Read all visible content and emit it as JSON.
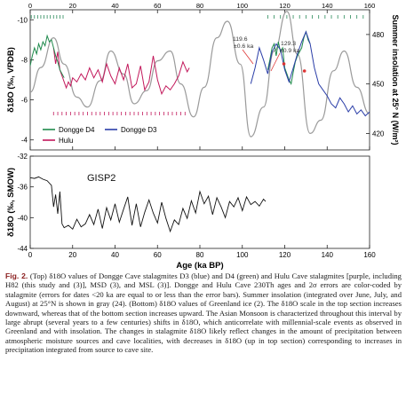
{
  "figure": {
    "x_axis": {
      "label": "Age (ka BP)",
      "ticks": [
        "0",
        "20",
        "40",
        "60",
        "80",
        "100",
        "120",
        "140",
        "160"
      ],
      "range": [
        0,
        160
      ]
    },
    "top_panel": {
      "y_label_left": "δ18O (‰, VPDB)",
      "y_ticks_left": [
        "-10",
        "-8",
        "-6",
        "-4"
      ],
      "y_range_left": [
        -10.5,
        -3.5
      ],
      "y_label_right": "Summer insolation at 25° N (W/m²)",
      "y_ticks_right": [
        "480",
        "450",
        "420"
      ],
      "y_range_right": [
        410,
        495
      ],
      "legend": [
        "Dongge D4",
        "Dongge D3",
        "Hulu"
      ],
      "annotations": [
        {
          "age": 119.6,
          "err": "±0.6 ka",
          "text": "119.6"
        },
        {
          "age": 129.3,
          "err": "±0.9 ka",
          "text": "129.3"
        }
      ]
    },
    "bottom_panel": {
      "y_label": "δ18O (‰, SMOW)",
      "y_ticks": [
        "-32",
        "-36",
        "-40",
        "-44"
      ],
      "y_range": [
        -44,
        -32
      ],
      "series_label": "GISP2"
    },
    "colors": {
      "dongge_d3": "#2b3ea8",
      "dongge_d4": "#1f8a4c",
      "hulu": "#c2185b",
      "insolation": "#9a9a9a",
      "gisp2": "#111111",
      "ticks": "#2a8a5a",
      "hulu_ticks": "#c2185b"
    }
  },
  "chart_data": [
    {
      "type": "line",
      "title": "",
      "xlabel": "Age (ka BP)",
      "ylabel": "δ18O (‰, VPDB)",
      "xlim": [
        0,
        160
      ],
      "ylim": [
        -10.5,
        -3.5
      ],
      "series": [
        {
          "name": "Hulu",
          "x": [
            11,
            12,
            13,
            14,
            15,
            16,
            17,
            18,
            19,
            20,
            22,
            24,
            26,
            28,
            30,
            32,
            34,
            36,
            38,
            40,
            42,
            44,
            46,
            48,
            50,
            52,
            54,
            56,
            58,
            60,
            62,
            64,
            66,
            68,
            70,
            72,
            74,
            75
          ],
          "y": [
            -8.6,
            -7.8,
            -8.4,
            -7.5,
            -7.2,
            -6.9,
            -6.6,
            -6.9,
            -6.7,
            -7.1,
            -6.9,
            -7.3,
            -7.0,
            -7.6,
            -7.1,
            -7.5,
            -6.9,
            -7.8,
            -7.2,
            -6.8,
            -7.6,
            -7.0,
            -7.8,
            -6.6,
            -6.8,
            -7.7,
            -6.5,
            -6.9,
            -8.2,
            -7.0,
            -6.3,
            -6.7,
            -6.5,
            -6.8,
            -7.2,
            -7.9,
            -7.4,
            -7.6
          ]
        },
        {
          "name": "Dongge D4",
          "x": [
            0,
            1,
            2,
            3,
            4,
            5,
            6,
            7,
            8,
            9,
            10,
            11,
            12,
            13,
            14,
            15,
            16,
            112,
            113,
            114,
            115,
            116,
            117,
            118,
            119,
            120,
            121,
            122,
            123,
            124,
            125,
            126,
            127,
            128,
            129,
            130,
            131,
            132
          ],
          "y": [
            -7.7,
            -8.2,
            -8.6,
            -8.3,
            -8.8,
            -8.5,
            -8.9,
            -8.7,
            -9.2,
            -8.9,
            -9.0,
            -8.6,
            -8.2,
            -7.9,
            -7.5,
            -7.3,
            -7.1,
            -7.5,
            -8.0,
            -8.6,
            -8.8,
            -8.2,
            -8.9,
            -8.4,
            -8.6,
            -7.6,
            -7.3,
            -7.0,
            -6.8,
            -7.4,
            -7.9,
            -8.2,
            -8.4,
            -8.6,
            -9.1,
            -9.4,
            -9.0,
            -8.8
          ]
        },
        {
          "name": "Dongge D3",
          "x": [
            104,
            106,
            108,
            110,
            112,
            114,
            116,
            118,
            120,
            122,
            124,
            126,
            128,
            130,
            132,
            134,
            136,
            138,
            140,
            142,
            144,
            146,
            148,
            150,
            152,
            154,
            156,
            158,
            160
          ],
          "y": [
            -6.8,
            -7.6,
            -8.6,
            -8.0,
            -7.3,
            -8.4,
            -8.8,
            -8.5,
            -7.5,
            -6.9,
            -7.6,
            -8.3,
            -8.9,
            -9.4,
            -8.8,
            -7.6,
            -6.8,
            -6.5,
            -6.2,
            -5.8,
            -5.6,
            -6.1,
            -5.8,
            -5.4,
            -5.7,
            -5.3,
            -5.5,
            -5.2,
            -5.4
          ]
        },
        {
          "name": "Summer insolation",
          "x": [
            0,
            5,
            11,
            16,
            22,
            27,
            33,
            38,
            44,
            49,
            55,
            60,
            66,
            71,
            77,
            82,
            88,
            93,
            99,
            104,
            110,
            115,
            121,
            126,
            132,
            137,
            143,
            148,
            154,
            160
          ],
          "y": [
            445,
            460,
            478,
            462,
            442,
            436,
            452,
            470,
            456,
            438,
            446,
            464,
            470,
            450,
            430,
            448,
            478,
            488,
            462,
            418,
            436,
            470,
            494,
            468,
            420,
            428,
            458,
            470,
            448,
            432
          ]
        }
      ]
    },
    {
      "type": "line",
      "title": "",
      "xlabel": "Age (ka BP)",
      "ylabel": "δ18O (‰, SMOW)",
      "xlim": [
        0,
        160
      ],
      "ylim": [
        -44,
        -32
      ],
      "series": [
        {
          "name": "GISP2",
          "x": [
            0,
            2,
            4,
            6,
            8,
            10,
            11,
            12,
            13,
            14,
            15,
            16,
            18,
            20,
            22,
            24,
            26,
            28,
            30,
            32,
            34,
            36,
            38,
            40,
            42,
            44,
            46,
            48,
            50,
            52,
            54,
            56,
            58,
            60,
            62,
            64,
            66,
            68,
            70,
            72,
            74,
            76,
            78,
            80,
            82,
            84,
            86,
            88,
            90,
            92,
            94,
            96,
            98,
            100,
            102,
            104,
            106,
            108,
            110,
            111
          ],
          "y": [
            -34.8,
            -34.9,
            -34.7,
            -35.0,
            -35.2,
            -35.8,
            -38.6,
            -37.0,
            -39.5,
            -36.6,
            -40.8,
            -41.3,
            -41.0,
            -41.5,
            -40.2,
            -41.2,
            -40.8,
            -39.6,
            -40.9,
            -38.9,
            -41.4,
            -38.7,
            -40.3,
            -38.2,
            -40.6,
            -38.9,
            -37.3,
            -41.0,
            -38.2,
            -41.2,
            -39.3,
            -37.7,
            -39.4,
            -40.7,
            -38.0,
            -40.1,
            -41.8,
            -40.3,
            -40.9,
            -38.8,
            -40.1,
            -37.8,
            -39.4,
            -36.6,
            -38.2,
            -37.2,
            -39.6,
            -37.4,
            -38.6,
            -40.0,
            -37.9,
            -38.6,
            -37.4,
            -39.1,
            -37.3,
            -38.3,
            -37.9,
            -38.5,
            -37.6,
            -37.9
          ]
        }
      ]
    }
  ],
  "caption": {
    "fig_label": "Fig. 2.",
    "text": "(Top) δ18O values of Dongge Cave stalagmites D3 (blue) and D4 (green) and Hulu Cave stalagmites [purple, including H82 (this study and (3)], MSD (3), and MSL (3)]. Dongge and Hulu Cave 230Th ages and 2σ errors are color-coded by stalagmite (errors for dates <20 ka are equal to or less than the error bars). Summer insolation (integrated over June, July, and August) at 25°N is shown in gray (24). (Bottom) δ18O values of Greenland ice (2). The δ18O scale in the top section increases downward, whereas that of the bottom section increases upward. The Asian Monsoon is characterized throughout this interval by large abrupt (several years to a few centuries) shifts in δ18O, which anticorrelate with millennial-scale events as observed in Greenland and with insolation. The changes in stalagmite δ18O likely reflect changes in the amount of precipitation between atmospheric moisture sources and cave localities, with decreases in δ18O (up in top section) corresponding to increases in precipitation integrated from source to cave site."
  }
}
